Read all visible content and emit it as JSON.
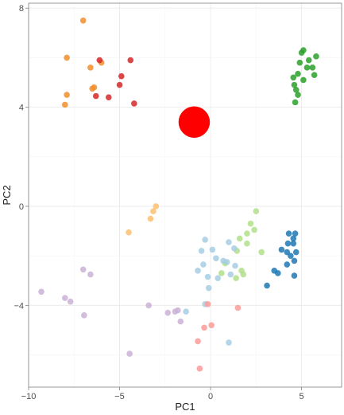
{
  "chart_data": {
    "type": "scatter",
    "xlabel": "PC1",
    "ylabel": "PC2",
    "xlim": [
      -10,
      7.2
    ],
    "ylim": [
      -7.3,
      8.2
    ],
    "x_ticks": [
      -10,
      -5,
      0,
      5
    ],
    "y_ticks": [
      -4,
      0,
      4,
      8
    ],
    "x_tick_labels": [
      "−10",
      "−5",
      "0",
      "5"
    ],
    "y_tick_labels": [
      "−4",
      "0",
      "4",
      "8"
    ],
    "grid": true,
    "point_opacity": 0.85,
    "series": [
      {
        "color": "#f28e2b",
        "points": [
          [
            -7.0,
            7.5
          ],
          [
            -7.9,
            6.0
          ],
          [
            -6.6,
            5.6
          ],
          [
            -6.0,
            5.8
          ],
          [
            -6.4,
            4.8
          ],
          [
            -6.5,
            4.75
          ],
          [
            -7.9,
            4.5
          ],
          [
            -8.0,
            4.1
          ]
        ]
      },
      {
        "color": "#d62728",
        "points": [
          [
            -6.1,
            5.9
          ],
          [
            -4.4,
            5.9
          ],
          [
            -4.9,
            5.25
          ],
          [
            -5.0,
            4.9
          ],
          [
            -6.3,
            4.45
          ],
          [
            -5.6,
            4.4
          ],
          [
            -4.2,
            4.15
          ]
        ]
      },
      {
        "color": "#2ca02c",
        "points": [
          [
            5.1,
            6.3
          ],
          [
            5.0,
            6.2
          ],
          [
            5.4,
            5.9
          ],
          [
            5.8,
            6.05
          ],
          [
            4.9,
            5.8
          ],
          [
            5.3,
            5.6
          ],
          [
            5.6,
            5.6
          ],
          [
            4.8,
            5.35
          ],
          [
            5.7,
            5.3
          ],
          [
            4.55,
            5.2
          ],
          [
            5.1,
            5.1
          ],
          [
            4.6,
            4.9
          ],
          [
            4.7,
            4.7
          ],
          [
            4.8,
            4.5
          ],
          [
            4.65,
            4.2
          ]
        ]
      },
      {
        "color": "#fdbf6f",
        "points": [
          [
            -3.0,
            0.0
          ],
          [
            -3.15,
            -0.2
          ],
          [
            -3.3,
            -0.5
          ],
          [
            -4.5,
            -1.05
          ]
        ]
      },
      {
        "color": "#b2df8a",
        "points": [
          [
            2.5,
            -0.2
          ],
          [
            2.2,
            -0.7
          ],
          [
            2.4,
            -0.95
          ],
          [
            2.0,
            -1.1
          ],
          [
            1.6,
            -1.3
          ],
          [
            2.0,
            -1.5
          ],
          [
            1.45,
            -1.8
          ],
          [
            2.8,
            -1.85
          ],
          [
            0.8,
            -2.3
          ],
          [
            1.7,
            -2.6
          ],
          [
            1.8,
            -2.75
          ],
          [
            0.6,
            -2.7
          ],
          [
            1.4,
            -2.9
          ]
        ]
      },
      {
        "color": "#a6cee3",
        "points": [
          [
            -0.3,
            -1.35
          ],
          [
            1.0,
            -1.45
          ],
          [
            1.3,
            -1.7
          ],
          [
            0.1,
            -1.75
          ],
          [
            -0.5,
            -1.8
          ],
          [
            0.3,
            -2.1
          ],
          [
            0.7,
            -2.2
          ],
          [
            0.9,
            -2.25
          ],
          [
            -0.4,
            -2.35
          ],
          [
            1.35,
            -2.4
          ],
          [
            -0.7,
            -2.6
          ],
          [
            1.1,
            -2.75
          ],
          [
            -0.15,
            -2.85
          ],
          [
            0.4,
            -2.9
          ],
          [
            -0.1,
            -3.3
          ],
          [
            -0.3,
            -3.95
          ],
          [
            -1.35,
            -4.25
          ],
          [
            1.0,
            -5.5
          ]
        ]
      },
      {
        "color": "#1f78b4",
        "points": [
          [
            4.3,
            -1.1
          ],
          [
            4.65,
            -1.1
          ],
          [
            4.55,
            -1.3
          ],
          [
            4.25,
            -1.5
          ],
          [
            4.55,
            -1.5
          ],
          [
            3.9,
            -1.75
          ],
          [
            4.2,
            -1.85
          ],
          [
            4.7,
            -1.85
          ],
          [
            4.4,
            -2.0
          ],
          [
            4.6,
            -2.2
          ],
          [
            4.2,
            -2.35
          ],
          [
            3.5,
            -2.6
          ],
          [
            3.7,
            -2.7
          ],
          [
            4.6,
            -2.8
          ],
          [
            3.1,
            -3.2
          ]
        ]
      },
      {
        "color": "#fb9a99",
        "points": [
          [
            -0.15,
            -3.95
          ],
          [
            1.5,
            -4.1
          ],
          [
            0.05,
            -4.8
          ],
          [
            -0.35,
            -4.9
          ],
          [
            -0.7,
            -5.45
          ],
          [
            -0.6,
            -6.55
          ]
        ]
      },
      {
        "color": "#cab2d6",
        "points": [
          [
            -7.0,
            -2.55
          ],
          [
            -6.6,
            -2.75
          ],
          [
            -9.3,
            -3.45
          ],
          [
            -8.0,
            -3.7
          ],
          [
            -7.7,
            -3.85
          ],
          [
            -3.4,
            -4.0
          ],
          [
            -1.8,
            -4.2
          ],
          [
            -2.35,
            -4.3
          ],
          [
            -1.95,
            -4.25
          ],
          [
            -6.95,
            -4.4
          ],
          [
            -1.65,
            -4.65
          ],
          [
            -4.45,
            -5.95
          ]
        ]
      },
      {
        "color": "#ff0000",
        "size": "large",
        "points": [
          [
            -0.9,
            3.4
          ]
        ]
      }
    ]
  }
}
